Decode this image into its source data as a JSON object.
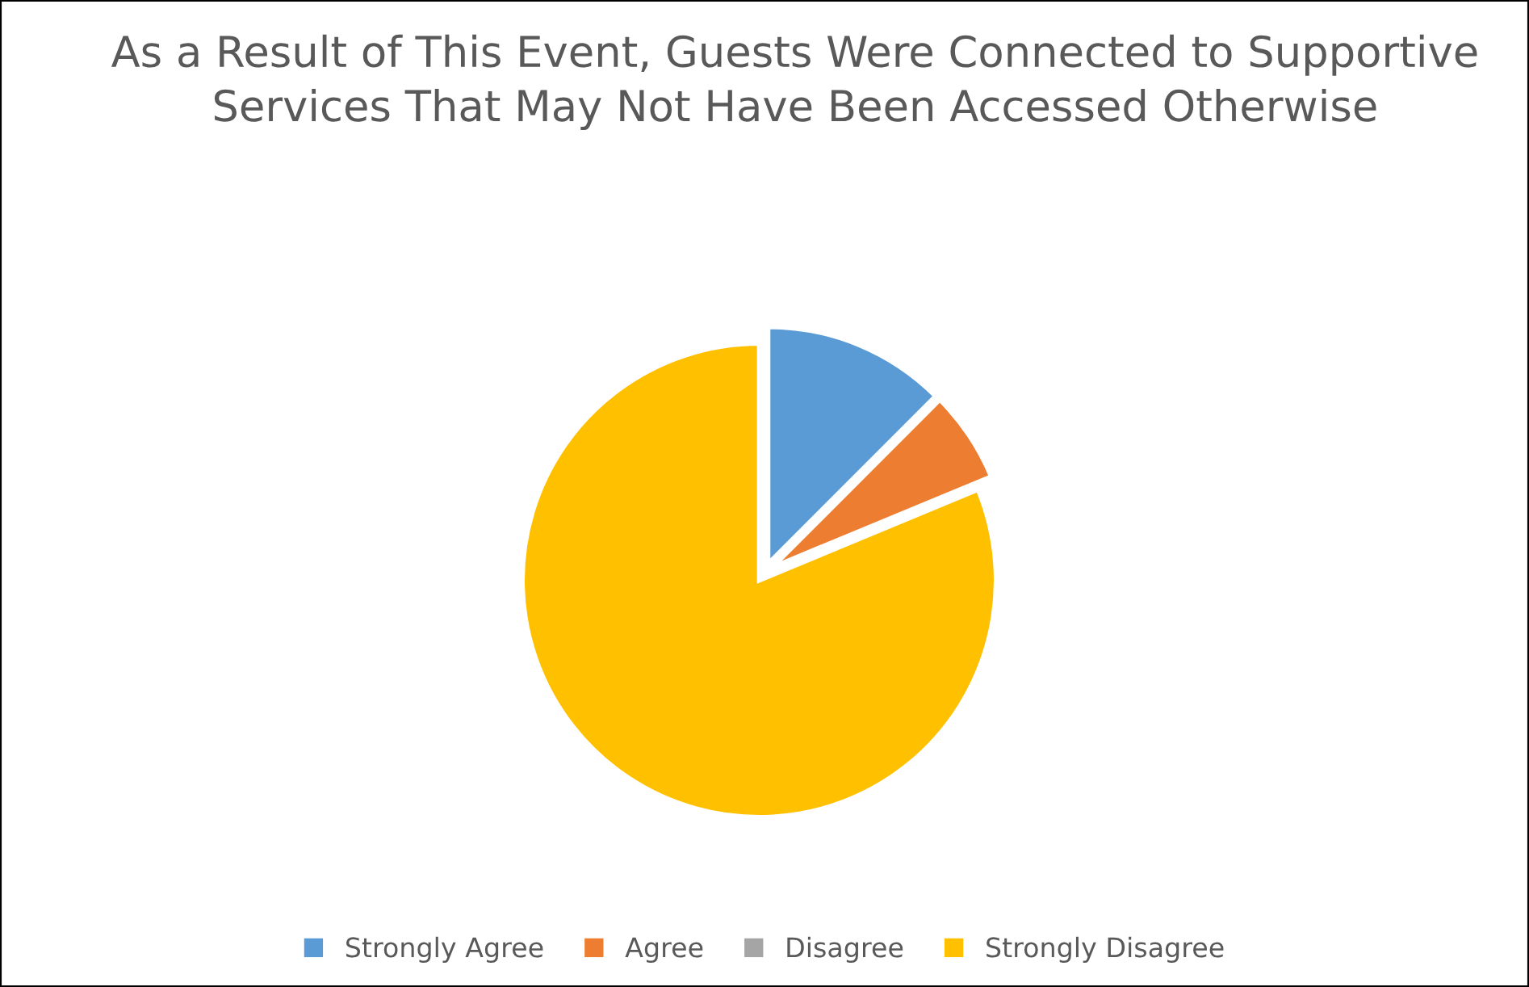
{
  "chart_data": {
    "type": "pie",
    "title": "As a Result of This Event, Guests Were Connected to Supportive Services That May Not Have Been Accessed Otherwise",
    "categories": [
      "Strongly Agree",
      "Agree",
      "Disagree",
      "Strongly Disagree"
    ],
    "values": [
      12.5,
      6.25,
      0,
      81.25
    ],
    "colors": [
      "#5b9bd5",
      "#ed7d31",
      "#a5a5a5",
      "#ffc000"
    ],
    "legend": "bottom"
  }
}
